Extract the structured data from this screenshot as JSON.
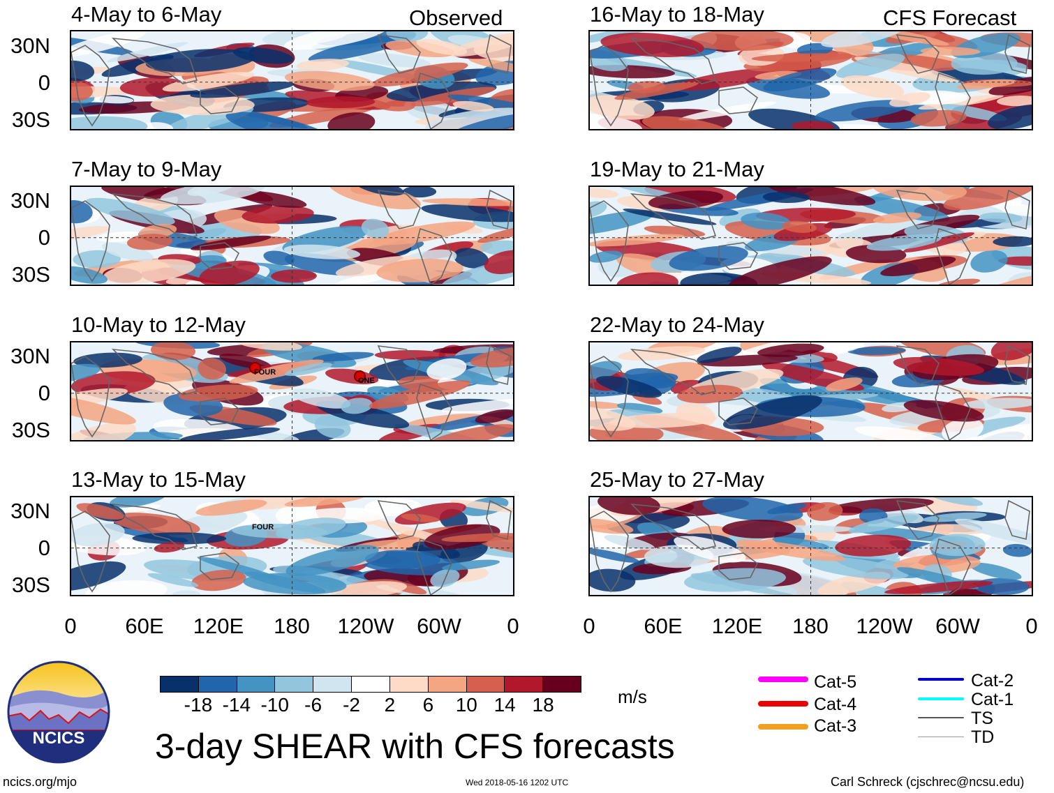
{
  "columns": {
    "left_label": "Observed",
    "right_label": "CFS Forecast"
  },
  "panels": [
    {
      "title": "4-May to 6-May"
    },
    {
      "title": "7-May to 9-May"
    },
    {
      "title": "10-May to 12-May"
    },
    {
      "title": "13-May to 15-May"
    },
    {
      "title": "16-May to 18-May"
    },
    {
      "title": "19-May to 21-May"
    },
    {
      "title": "22-May to 24-May"
    },
    {
      "title": "25-May to 27-May"
    }
  ],
  "lat_labels": [
    "30N",
    "0",
    "30S"
  ],
  "lon_labels": [
    "0",
    "60E",
    "120E",
    "180",
    "120W",
    "60W",
    "0"
  ],
  "storms": [
    {
      "name": "FOUR"
    },
    {
      "name": "ONE"
    },
    {
      "name": "FOUR"
    }
  ],
  "colorbar": {
    "units": "m/s",
    "ticks": [
      "-18",
      "-14",
      "-10",
      "-6",
      "-2",
      "2",
      "6",
      "10",
      "14",
      "18"
    ],
    "colors": [
      "#08306b",
      "#2166ac",
      "#4393c3",
      "#92c5de",
      "#d1e5f0",
      "#ffffff",
      "#fddbc7",
      "#f4a582",
      "#d6604d",
      "#b2182b",
      "#67001f"
    ]
  },
  "legend": [
    {
      "label": "Cat-5",
      "color": "#ff00ff"
    },
    {
      "label": "Cat-4",
      "color": "#ee0000"
    },
    {
      "label": "Cat-3",
      "color": "#f0a020"
    },
    {
      "label": "Cat-2",
      "color": "#0000cc"
    },
    {
      "label": "Cat-1",
      "color": "#00ffff"
    },
    {
      "label": "TS",
      "color": "#555555"
    },
    {
      "label": "TD",
      "color": "#999999"
    }
  ],
  "title": "3-day SHEAR with CFS forecasts",
  "logo_text": "NCICS",
  "footer": {
    "url": "ncics.org/mjo",
    "timestamp": "Wed 2018-05-16 1202 UTC",
    "credit": "Carl Schreck (cjschrec@ncsu.edu)"
  }
}
